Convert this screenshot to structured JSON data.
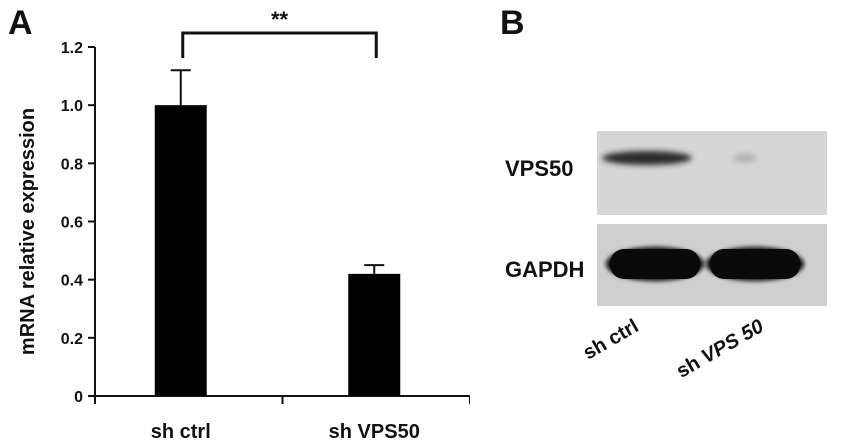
{
  "panel_a": {
    "letter": "A"
  },
  "panel_b": {
    "letter": "B",
    "rows": [
      {
        "label": "VPS50",
        "band_intensity": [
          0.85,
          0.2
        ]
      },
      {
        "label": "GAPDH",
        "band_intensity": [
          1.0,
          1.0
        ]
      }
    ],
    "lanes": [
      {
        "parts": [
          {
            "text": "sh ctrl",
            "italic": false
          }
        ]
      },
      {
        "parts": [
          {
            "text": "sh ",
            "italic": false
          },
          {
            "text": "VPS 50",
            "italic": true
          }
        ]
      }
    ]
  },
  "chart_data": {
    "type": "bar",
    "categories": [
      "sh ctrl",
      "sh VPS50"
    ],
    "values": [
      1.0,
      0.42
    ],
    "errors": [
      0.12,
      0.03
    ],
    "ylabel": "mRNA relative expression",
    "xlabel": "",
    "title": "",
    "ylim": [
      0,
      1.2
    ],
    "yticks": [
      "0",
      "0.2",
      "0.4",
      "0.6",
      "0.8",
      "1.0",
      "1.2"
    ],
    "significance": {
      "between": [
        0,
        1
      ],
      "label": "**"
    },
    "bar_color": "#000000",
    "grid": false
  }
}
